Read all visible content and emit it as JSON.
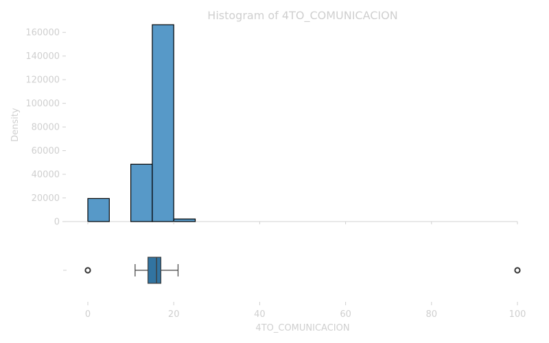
{
  "chart_data": {
    "type": "histogram+boxplot",
    "title": "Histogram of 4TO_COMUNICACION",
    "xlabel": "4TO_COMUNICACION",
    "ylabel": "Density",
    "xlim": [
      0,
      100
    ],
    "ylim": [
      0,
      170000
    ],
    "x_ticks": [
      0,
      20,
      40,
      60,
      80,
      100
    ],
    "y_ticks": [
      0,
      20000,
      40000,
      60000,
      80000,
      100000,
      120000,
      140000,
      160000
    ],
    "grid": false,
    "bar_color": "#5799c8",
    "box_color": "#3274a1",
    "histogram": {
      "bin_width": 5,
      "bins": [
        {
          "start": 0,
          "end": 5,
          "count": 19500
        },
        {
          "start": 5,
          "end": 10,
          "count": 0
        },
        {
          "start": 10,
          "end": 15,
          "count": 48500
        },
        {
          "start": 15,
          "end": 20,
          "count": 166500
        },
        {
          "start": 20,
          "end": 25,
          "count": 2200
        }
      ]
    },
    "boxplot": {
      "whisker_low": 11,
      "q1": 14,
      "median": 16,
      "q3": 17,
      "whisker_high": 21,
      "outliers": [
        0,
        100
      ]
    }
  }
}
